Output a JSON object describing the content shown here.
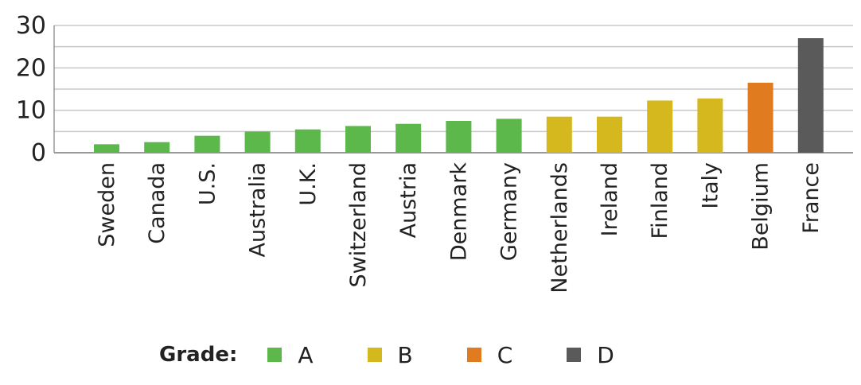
{
  "chart_data": {
    "type": "bar",
    "categories": [
      "Sweden",
      "Canada",
      "U.S.",
      "Australia",
      "U.K.",
      "Switzerland",
      "Austria",
      "Denmark",
      "Germany",
      "Netherlands",
      "Ireland",
      "Finland",
      "Italy",
      "Belgium",
      "France"
    ],
    "values": [
      2,
      2.5,
      4,
      5,
      5.5,
      6.3,
      6.8,
      7.5,
      8,
      8.5,
      8.5,
      12.3,
      12.8,
      16.5,
      27
    ],
    "grades": [
      "A",
      "A",
      "A",
      "A",
      "A",
      "A",
      "A",
      "A",
      "A",
      "B",
      "B",
      "B",
      "B",
      "C",
      "D"
    ],
    "ylim": [
      0,
      30
    ],
    "yticks": [
      0,
      10,
      20,
      30
    ],
    "grid": true,
    "legend": {
      "title": "Grade:",
      "position": "bottom",
      "items": [
        {
          "label": "A",
          "color": "#5cb84a"
        },
        {
          "label": "B",
          "color": "#d4b81e"
        },
        {
          "label": "C",
          "color": "#e07b1f"
        },
        {
          "label": "D",
          "color": "#5a5a5a"
        }
      ]
    },
    "grade_colors": {
      "A": "#5cb84a",
      "B": "#d4b81e",
      "C": "#e07b1f",
      "D": "#5a5a5a"
    }
  }
}
